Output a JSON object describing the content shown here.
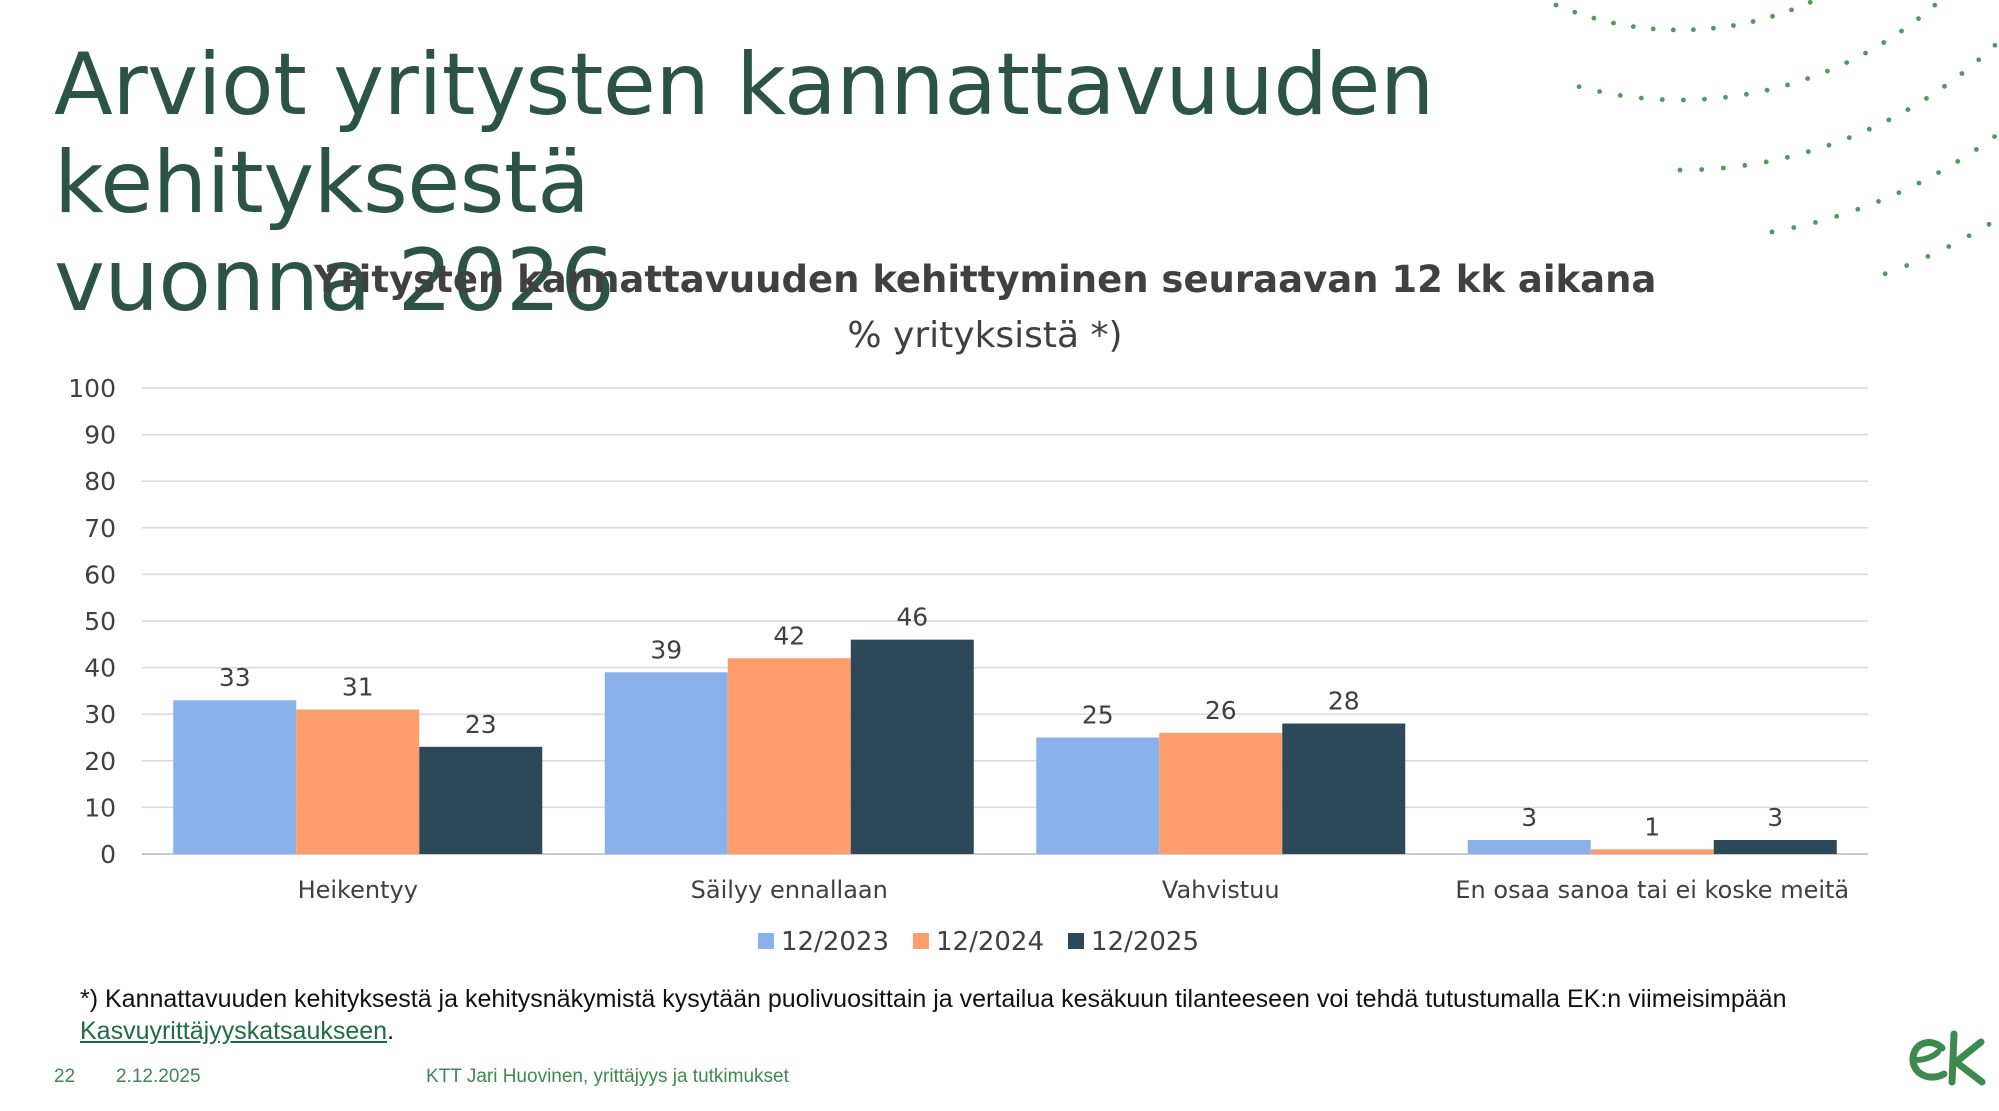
{
  "slide": {
    "title_line1": "Arviot yritysten kannattavuuden kehityksestä",
    "title_line2": "vuonna 2026",
    "footnote_text": "*) Kannattavuuden kehityksestä ja kehitysnäkymistä kysytään puolivuosittain ja vertailua kesäkuun tilanteeseen voi tehdä tutustumalla EK:n viimeisimpään ",
    "footnote_link": "Kasvuyrittäjyyskatsaukseen",
    "footnote_end": ".",
    "page_number": "22",
    "date": "2.12.2025",
    "author": "KTT Jari Huovinen, yrittäjyys ja tutkimukset",
    "logo_text": "ek",
    "colors": {
      "title": "#2c5446",
      "accent_green": "#3d8a4f"
    }
  },
  "chart_data": {
    "type": "bar",
    "title": "Yritysten kannattavuuden kehittyminen seuraavan 12 kk aikana",
    "subtitle": "% yrityksistä *)",
    "categories": [
      "Heikentyy",
      "Säilyy ennallaan",
      "Vahvistuu",
      "En osaa sanoa tai ei koske meitä"
    ],
    "series": [
      {
        "name": "12/2023",
        "color": "#8ab2ea",
        "values": [
          33,
          39,
          25,
          3
        ]
      },
      {
        "name": "12/2024",
        "color": "#fd9d6b",
        "values": [
          31,
          42,
          26,
          1
        ]
      },
      {
        "name": "12/2025",
        "color": "#2d4858",
        "values": [
          23,
          46,
          28,
          3
        ]
      }
    ],
    "ylim": [
      0,
      100
    ],
    "yticks": [
      "0",
      "10",
      "20",
      "30",
      "40",
      "50",
      "60",
      "70",
      "80",
      "90",
      "100"
    ],
    "grid": true,
    "legend": "bottom"
  }
}
